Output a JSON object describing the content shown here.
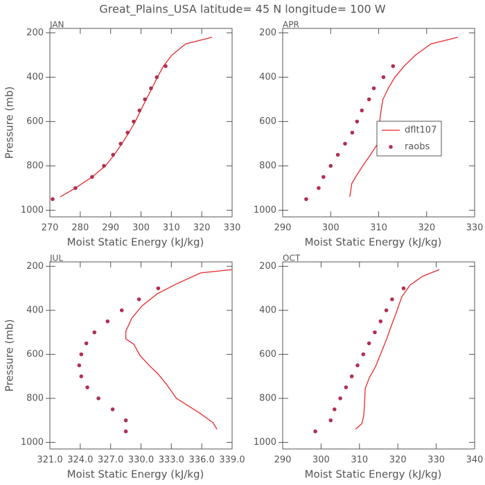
{
  "title": "Great_Plains_USA   latitude= 45 N longitude= 100 W",
  "chart_data": [
    {
      "type": "line",
      "title": "JAN",
      "xlabel": "Moist Static Energy (kJ/kg)",
      "ylabel": "Pressure (mb)",
      "xlim": [
        270,
        330
      ],
      "xticks": [
        270,
        280,
        290,
        300,
        310,
        320,
        330
      ],
      "ylim": [
        1030,
        180
      ],
      "yticks": [
        200,
        400,
        600,
        800,
        1000
      ],
      "series": [
        {
          "name": "dflt107",
          "color": "#e8262a",
          "mode": "line",
          "x": [
            273.4,
            278.4,
            283.9,
            288.3,
            291.2,
            293.7,
            296,
            298.1,
            299.9,
            301.7,
            303.6,
            305.4,
            307.4,
            310.2,
            314.7,
            323.4
          ],
          "values": [
            940,
            900,
            850,
            800,
            750,
            700,
            650,
            600,
            550,
            500,
            450,
            400,
            350,
            300,
            250,
            220
          ]
        },
        {
          "name": "raobs",
          "color": "#b03050",
          "mode": "markers",
          "x": [
            270.9,
            278.4,
            283.9,
            287.8,
            290.8,
            293.3,
            295.6,
            297.6,
            299.5,
            301.3,
            303.3,
            305.2,
            308.1
          ],
          "values": [
            950,
            900,
            850,
            800,
            750,
            700,
            650,
            600,
            550,
            500,
            450,
            400,
            350
          ]
        }
      ]
    },
    {
      "type": "line",
      "title": "APR",
      "xlabel": "Moist Static Energy (kJ/kg)",
      "xlim": [
        290,
        330
      ],
      "xticks": [
        290,
        300,
        310,
        320,
        330
      ],
      "ylim": [
        1030,
        180
      ],
      "yticks": [
        200,
        400,
        600,
        800,
        1000
      ],
      "legend": "center right",
      "series": [
        {
          "name": "dflt107",
          "color": "#e8262a",
          "mode": "line",
          "x": [
            304,
            304.4,
            305.2,
            306.7,
            308.3,
            309.8,
            310.2,
            310.2,
            310.5,
            310.9,
            312,
            313.4,
            315.3,
            317.7,
            320.9,
            326.5
          ],
          "values": [
            940,
            880,
            850,
            800,
            750,
            700,
            650,
            600,
            550,
            500,
            450,
            400,
            350,
            300,
            250,
            220
          ]
        },
        {
          "name": "raobs",
          "color": "#b03050",
          "mode": "markers",
          "x": [
            294.9,
            297.5,
            298.5,
            300,
            301.5,
            303,
            304.5,
            305.5,
            306.5,
            308,
            309,
            311,
            313
          ],
          "values": [
            950,
            900,
            850,
            800,
            750,
            700,
            650,
            600,
            550,
            500,
            450,
            400,
            350
          ]
        }
      ]
    },
    {
      "type": "line",
      "title": "JUL",
      "xlabel": "Moist Static Energy (kJ/kg)",
      "ylabel": "Pressure (mb)",
      "xlim": [
        321,
        339
      ],
      "xticks": [
        {
          "value": 321,
          "label": "321.0"
        },
        {
          "value": 324,
          "label": "324.0"
        },
        {
          "value": 327,
          "label": "327.0"
        },
        {
          "value": 330,
          "label": "330.0"
        },
        {
          "value": 333,
          "label": "333.0"
        },
        {
          "value": 336,
          "label": "336.0"
        },
        {
          "value": 339,
          "label": "339.0"
        }
      ],
      "ylim": [
        1030,
        180
      ],
      "yticks": [
        200,
        400,
        600,
        800,
        1000
      ],
      "series": [
        {
          "name": "dflt107",
          "color": "#e8262a",
          "mode": "line",
          "x": [
            337.5,
            337.1,
            335.9,
            334.7,
            333.5,
            332.5,
            331.7,
            330.8,
            329.9,
            329.3,
            328.5,
            328.5,
            329.1,
            330.1,
            331.6,
            333.5,
            335.9,
            339
          ],
          "values": [
            940,
            910,
            870,
            835,
            800,
            735,
            690,
            650,
            605,
            555,
            530,
            495,
            435,
            380,
            325,
            280,
            230,
            215
          ]
        },
        {
          "name": "raobs",
          "color": "#b03050",
          "mode": "markers",
          "x": [
            328.5,
            328.5,
            327.2,
            325.8,
            324.7,
            324.1,
            323.9,
            324.1,
            324.6,
            325.4,
            326.7,
            328.1,
            329.8,
            331.7
          ],
          "values": [
            950,
            900,
            850,
            800,
            750,
            700,
            650,
            600,
            550,
            500,
            450,
            400,
            350,
            300
          ]
        }
      ]
    },
    {
      "type": "line",
      "title": "OCT",
      "xlabel": "Moist Static Energy (kJ/kg)",
      "xlim": [
        290,
        340
      ],
      "xticks": [
        290,
        300,
        310,
        320,
        330,
        340
      ],
      "ylim": [
        1030,
        180
      ],
      "yticks": [
        200,
        400,
        600,
        800,
        1000
      ],
      "series": [
        {
          "name": "dflt107",
          "color": "#e8262a",
          "mode": "line",
          "x": [
            309,
            310.6,
            311.1,
            311.3,
            311.5,
            312.6,
            314.2,
            315.6,
            317.1,
            318.3,
            319.6,
            321,
            323.2,
            326.5,
            330.8
          ],
          "values": [
            940,
            915,
            880,
            835,
            755,
            705,
            655,
            595,
            530,
            470,
            410,
            340,
            285,
            245,
            215
          ]
        },
        {
          "name": "raobs",
          "color": "#b03050",
          "mode": "markers",
          "x": [
            298.5,
            302.5,
            303.5,
            305,
            306.5,
            308,
            309.5,
            311,
            312.5,
            314,
            315.5,
            317,
            318.5,
            321.5
          ],
          "values": [
            950,
            900,
            850,
            800,
            750,
            700,
            650,
            600,
            550,
            500,
            450,
            400,
            350,
            300
          ]
        }
      ]
    }
  ]
}
